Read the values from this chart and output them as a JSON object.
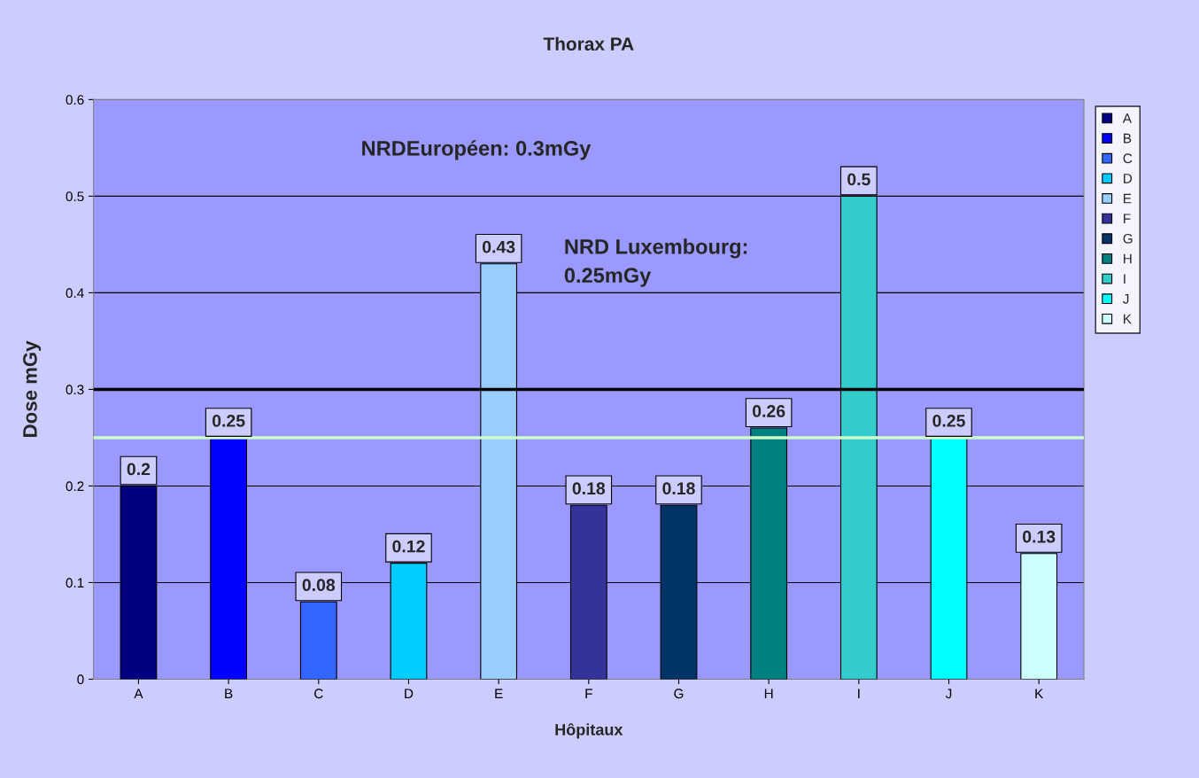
{
  "chart_data": {
    "type": "bar",
    "title": "Thorax PA",
    "xlabel": "Hôpitaux",
    "ylabel": "Dose mGy",
    "categories": [
      "A",
      "B",
      "C",
      "D",
      "E",
      "F",
      "G",
      "H",
      "I",
      "J",
      "K"
    ],
    "series": [
      {
        "name": "A",
        "color": "#000080",
        "values": [
          0.2,
          null,
          null,
          null,
          null,
          null,
          null,
          null,
          null,
          null,
          null
        ]
      },
      {
        "name": "B",
        "color": "#0000ff",
        "values": [
          null,
          0.25,
          null,
          null,
          null,
          null,
          null,
          null,
          null,
          null,
          null
        ]
      },
      {
        "name": "C",
        "color": "#3366ff",
        "values": [
          null,
          null,
          0.08,
          null,
          null,
          null,
          null,
          null,
          null,
          null,
          null
        ]
      },
      {
        "name": "D",
        "color": "#00ccff",
        "values": [
          null,
          null,
          null,
          0.12,
          null,
          null,
          null,
          null,
          null,
          null,
          null
        ]
      },
      {
        "name": "E",
        "color": "#99ccff",
        "values": [
          null,
          null,
          null,
          null,
          0.43,
          null,
          null,
          null,
          null,
          null,
          null
        ]
      },
      {
        "name": "F",
        "color": "#333399",
        "values": [
          null,
          null,
          null,
          null,
          null,
          0.18,
          null,
          null,
          null,
          null,
          null
        ]
      },
      {
        "name": "G",
        "color": "#003366",
        "values": [
          null,
          null,
          null,
          null,
          null,
          null,
          0.18,
          null,
          null,
          null,
          null
        ]
      },
      {
        "name": "H",
        "color": "#008080",
        "values": [
          null,
          null,
          null,
          null,
          null,
          null,
          null,
          0.26,
          null,
          null,
          null
        ]
      },
      {
        "name": "I",
        "color": "#33cccc",
        "values": [
          null,
          null,
          null,
          null,
          null,
          null,
          null,
          null,
          0.5,
          null,
          null
        ]
      },
      {
        "name": "J",
        "color": "#00ffff",
        "values": [
          null,
          null,
          null,
          null,
          null,
          null,
          null,
          null,
          null,
          0.25,
          null
        ]
      },
      {
        "name": "K",
        "color": "#ccffff",
        "values": [
          null,
          null,
          null,
          null,
          null,
          null,
          null,
          null,
          null,
          null,
          0.13
        ]
      }
    ],
    "ylim": [
      0,
      0.6
    ],
    "yticks": [
      0,
      0.1,
      0.2,
      0.3,
      0.4,
      0.5,
      0.6
    ],
    "grid": "y",
    "legend": "right",
    "data_labels": true,
    "ref_lines": [
      {
        "axis": "y",
        "value": 0.3,
        "color": "#000000"
      },
      {
        "axis": "y",
        "value": 0.25,
        "color": "#ccffcc"
      }
    ],
    "annotations": [
      "NRDEuropéen: 0.3mGy",
      "NRD Luxembourg:\n0.25mGy"
    ]
  }
}
